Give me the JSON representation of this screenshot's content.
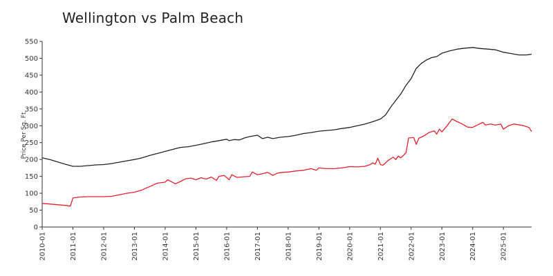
{
  "chart_data": {
    "type": "line",
    "title": "Wellington vs Palm Beach",
    "xlabel": "",
    "ylabel": "Price Per Sq. Ft.",
    "ylim": [
      0,
      550
    ],
    "yticks": [
      0,
      50,
      100,
      150,
      200,
      250,
      300,
      350,
      400,
      450,
      500,
      550
    ],
    "xlim": [
      "2010-01",
      "2025-12"
    ],
    "xticks": [
      "2010-01",
      "2011-01",
      "2012-01",
      "2013-01",
      "2014-01",
      "2015-01",
      "2016-01",
      "2017-01",
      "2018-01",
      "2019-01",
      "2020-01",
      "2021-01",
      "2022-01",
      "2023-01",
      "2024-01",
      "2025-01"
    ],
    "grid": false,
    "legend": "none",
    "series": [
      {
        "color": "#222222",
        "points": [
          [
            "2010-01",
            205
          ],
          [
            "2010-04",
            200
          ],
          [
            "2010-07",
            193
          ],
          [
            "2010-10",
            186
          ],
          [
            "2011-01",
            180
          ],
          [
            "2011-04",
            180
          ],
          [
            "2011-07",
            182
          ],
          [
            "2011-10",
            184
          ],
          [
            "2012-01",
            185
          ],
          [
            "2012-04",
            188
          ],
          [
            "2012-07",
            192
          ],
          [
            "2012-10",
            196
          ],
          [
            "2013-01",
            200
          ],
          [
            "2013-04",
            205
          ],
          [
            "2013-07",
            212
          ],
          [
            "2013-10",
            218
          ],
          [
            "2014-01",
            224
          ],
          [
            "2014-04",
            230
          ],
          [
            "2014-07",
            236
          ],
          [
            "2014-10",
            238
          ],
          [
            "2015-01",
            242
          ],
          [
            "2015-04",
            247
          ],
          [
            "2015-07",
            252
          ],
          [
            "2015-10",
            256
          ],
          [
            "2016-01",
            260
          ],
          [
            "2016-02",
            256
          ],
          [
            "2016-04",
            259
          ],
          [
            "2016-06",
            258
          ],
          [
            "2016-08",
            264
          ],
          [
            "2016-10",
            268
          ],
          [
            "2017-01",
            272
          ],
          [
            "2017-03",
            262
          ],
          [
            "2017-05",
            266
          ],
          [
            "2017-07",
            262
          ],
          [
            "2017-10",
            266
          ],
          [
            "2018-01",
            268
          ],
          [
            "2018-04",
            272
          ],
          [
            "2018-07",
            277
          ],
          [
            "2018-10",
            280
          ],
          [
            "2019-01",
            284
          ],
          [
            "2019-04",
            286
          ],
          [
            "2019-07",
            288
          ],
          [
            "2019-10",
            292
          ],
          [
            "2020-01",
            295
          ],
          [
            "2020-04",
            300
          ],
          [
            "2020-07",
            305
          ],
          [
            "2020-10",
            312
          ],
          [
            "2021-01",
            320
          ],
          [
            "2021-03",
            332
          ],
          [
            "2021-05",
            355
          ],
          [
            "2021-07",
            375
          ],
          [
            "2021-09",
            395
          ],
          [
            "2021-11",
            420
          ],
          [
            "2022-01",
            440
          ],
          [
            "2022-03",
            470
          ],
          [
            "2022-05",
            485
          ],
          [
            "2022-07",
            495
          ],
          [
            "2022-09",
            502
          ],
          [
            "2022-11",
            505
          ],
          [
            "2023-01",
            515
          ],
          [
            "2023-04",
            522
          ],
          [
            "2023-07",
            527
          ],
          [
            "2023-10",
            530
          ],
          [
            "2024-01",
            532
          ],
          [
            "2024-04",
            529
          ],
          [
            "2024-07",
            527
          ],
          [
            "2024-10",
            525
          ],
          [
            "2025-01",
            518
          ],
          [
            "2025-04",
            514
          ],
          [
            "2025-07",
            510
          ],
          [
            "2025-10",
            510
          ],
          [
            "2025-12",
            512
          ]
        ]
      },
      {
        "color": "#e8202a",
        "points": [
          [
            "2010-01",
            70
          ],
          [
            "2010-04",
            68
          ],
          [
            "2010-07",
            66
          ],
          [
            "2010-10",
            64
          ],
          [
            "2010-12",
            62
          ],
          [
            "2011-01",
            86
          ],
          [
            "2011-04",
            89
          ],
          [
            "2011-07",
            90
          ],
          [
            "2011-10",
            90
          ],
          [
            "2012-01",
            90
          ],
          [
            "2012-04",
            91
          ],
          [
            "2012-07",
            95
          ],
          [
            "2012-10",
            100
          ],
          [
            "2013-01",
            103
          ],
          [
            "2013-04",
            110
          ],
          [
            "2013-07",
            120
          ],
          [
            "2013-10",
            130
          ],
          [
            "2014-01",
            133
          ],
          [
            "2014-02",
            140
          ],
          [
            "2014-04",
            132
          ],
          [
            "2014-05",
            128
          ],
          [
            "2014-07",
            135
          ],
          [
            "2014-09",
            143
          ],
          [
            "2014-11",
            145
          ],
          [
            "2015-01",
            140
          ],
          [
            "2015-03",
            146
          ],
          [
            "2015-05",
            142
          ],
          [
            "2015-07",
            148
          ],
          [
            "2015-09",
            138
          ],
          [
            "2015-10",
            150
          ],
          [
            "2015-12",
            153
          ],
          [
            "2016-02",
            140
          ],
          [
            "2016-03",
            155
          ],
          [
            "2016-05",
            147
          ],
          [
            "2016-08",
            149
          ],
          [
            "2016-10",
            150
          ],
          [
            "2016-11",
            163
          ],
          [
            "2017-01",
            155
          ],
          [
            "2017-03",
            158
          ],
          [
            "2017-05",
            162
          ],
          [
            "2017-07",
            153
          ],
          [
            "2017-09",
            160
          ],
          [
            "2017-11",
            162
          ],
          [
            "2018-01",
            163
          ],
          [
            "2018-04",
            166
          ],
          [
            "2018-07",
            168
          ],
          [
            "2018-10",
            173
          ],
          [
            "2018-12",
            168
          ],
          [
            "2019-01",
            175
          ],
          [
            "2019-04",
            173
          ],
          [
            "2019-07",
            173
          ],
          [
            "2019-10",
            175
          ],
          [
            "2020-01",
            179
          ],
          [
            "2020-04",
            178
          ],
          [
            "2020-07",
            180
          ],
          [
            "2020-09",
            185
          ],
          [
            "2020-10",
            190
          ],
          [
            "2020-11",
            186
          ],
          [
            "2020-12",
            204
          ],
          [
            "2021-01",
            185
          ],
          [
            "2021-02",
            183
          ],
          [
            "2021-04",
            197
          ],
          [
            "2021-06",
            207
          ],
          [
            "2021-07",
            200
          ],
          [
            "2021-08",
            210
          ],
          [
            "2021-09",
            205
          ],
          [
            "2021-11",
            220
          ],
          [
            "2021-12",
            264
          ],
          [
            "2022-02",
            265
          ],
          [
            "2022-03",
            245
          ],
          [
            "2022-04",
            263
          ],
          [
            "2022-06",
            270
          ],
          [
            "2022-08",
            280
          ],
          [
            "2022-10",
            285
          ],
          [
            "2022-11",
            275
          ],
          [
            "2022-12",
            290
          ],
          [
            "2023-01",
            282
          ],
          [
            "2023-03",
            300
          ],
          [
            "2023-05",
            320
          ],
          [
            "2023-07",
            312
          ],
          [
            "2023-09",
            305
          ],
          [
            "2023-11",
            296
          ],
          [
            "2024-01",
            295
          ],
          [
            "2024-03",
            303
          ],
          [
            "2024-05",
            310
          ],
          [
            "2024-06",
            302
          ],
          [
            "2024-08",
            305
          ],
          [
            "2024-10",
            302
          ],
          [
            "2024-12",
            305
          ],
          [
            "2025-01",
            290
          ],
          [
            "2025-03",
            300
          ],
          [
            "2025-05",
            305
          ],
          [
            "2025-07",
            303
          ],
          [
            "2025-09",
            300
          ],
          [
            "2025-11",
            295
          ],
          [
            "2025-12",
            283
          ]
        ]
      }
    ]
  }
}
